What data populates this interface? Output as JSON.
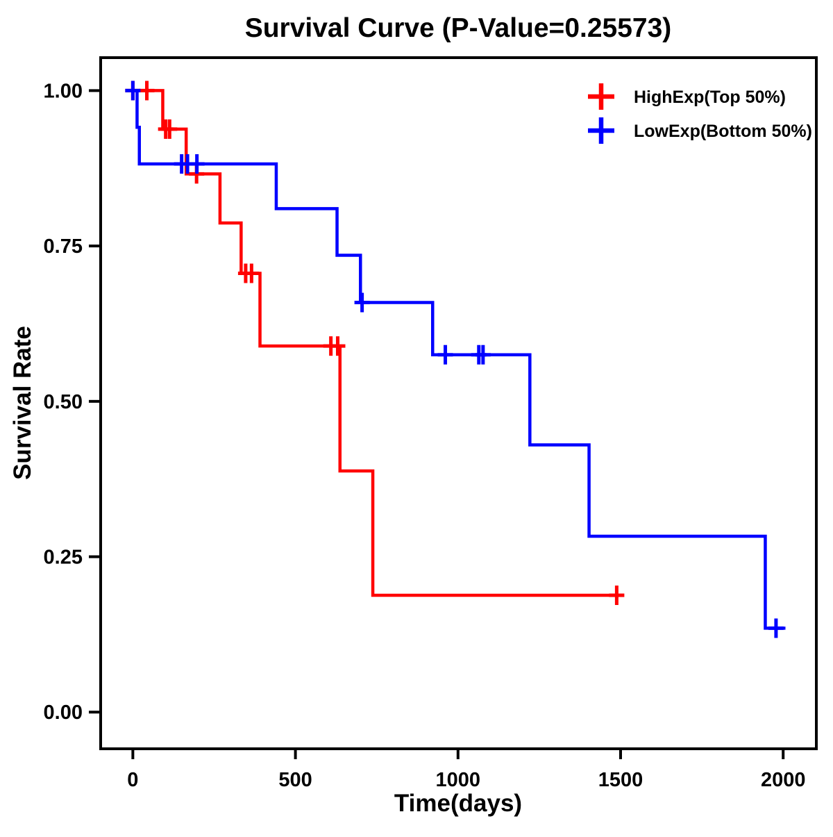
{
  "title": "Survival Curve (P-Value=0.25573)",
  "chart_data": {
    "type": "line",
    "style": "kaplan-meier-step",
    "title": "Survival Curve (P-Value=0.25573)",
    "p_value": 0.25573,
    "xlabel": "Time(days)",
    "ylabel": "Survival Rate",
    "xlim": [
      -99,
      2102
    ],
    "ylim": [
      -0.059,
      1.053
    ],
    "grid": false,
    "legend_position": "top-right",
    "x_ticks": [
      {
        "value": 0,
        "label": "0"
      },
      {
        "value": 500,
        "label": "500"
      },
      {
        "value": 1000,
        "label": "1000"
      },
      {
        "value": 1500,
        "label": "1500"
      },
      {
        "value": 2000,
        "label": "2000"
      }
    ],
    "y_ticks": [
      {
        "value": 0.0,
        "label": "0.00"
      },
      {
        "value": 0.25,
        "label": "0.25"
      },
      {
        "value": 0.5,
        "label": "0.50"
      },
      {
        "value": 0.75,
        "label": "0.75"
      },
      {
        "value": 1.0,
        "label": "1.00"
      }
    ],
    "series": [
      {
        "name": "HighExp(Top 50%)",
        "color": "#ff0000",
        "steps": [
          [
            0,
            1.0
          ],
          [
            92,
            0.938
          ],
          [
            164,
            0.866
          ],
          [
            268,
            0.787
          ],
          [
            333,
            0.706
          ],
          [
            391,
            0.589
          ],
          [
            637,
            0.388
          ],
          [
            738,
            0.188
          ],
          [
            1488,
            0.188
          ]
        ],
        "censors": [
          [
            0,
            1.0
          ],
          [
            43,
            1.0
          ],
          [
            101,
            0.938
          ],
          [
            113,
            0.938
          ],
          [
            196,
            0.866
          ],
          [
            347,
            0.706
          ],
          [
            365,
            0.706
          ],
          [
            609,
            0.589
          ],
          [
            630,
            0.589
          ],
          [
            1488,
            0.188
          ]
        ]
      },
      {
        "name": "LowExp(Bottom 50%)",
        "color": "#0000ff",
        "steps": [
          [
            0,
            1.0
          ],
          [
            13,
            0.941
          ],
          [
            20,
            0.882
          ],
          [
            441,
            0.81
          ],
          [
            628,
            0.735
          ],
          [
            700,
            0.659
          ],
          [
            922,
            0.575
          ],
          [
            1221,
            0.43
          ],
          [
            1403,
            0.283
          ],
          [
            1945,
            0.135
          ],
          [
            2007,
            0.135
          ]
        ],
        "censors": [
          [
            0,
            1.0
          ],
          [
            150,
            0.882
          ],
          [
            168,
            0.882
          ],
          [
            197,
            0.882
          ],
          [
            705,
            0.659
          ],
          [
            961,
            0.575
          ],
          [
            1064,
            0.575
          ],
          [
            1077,
            0.575
          ],
          [
            1978,
            0.135
          ]
        ]
      }
    ]
  }
}
